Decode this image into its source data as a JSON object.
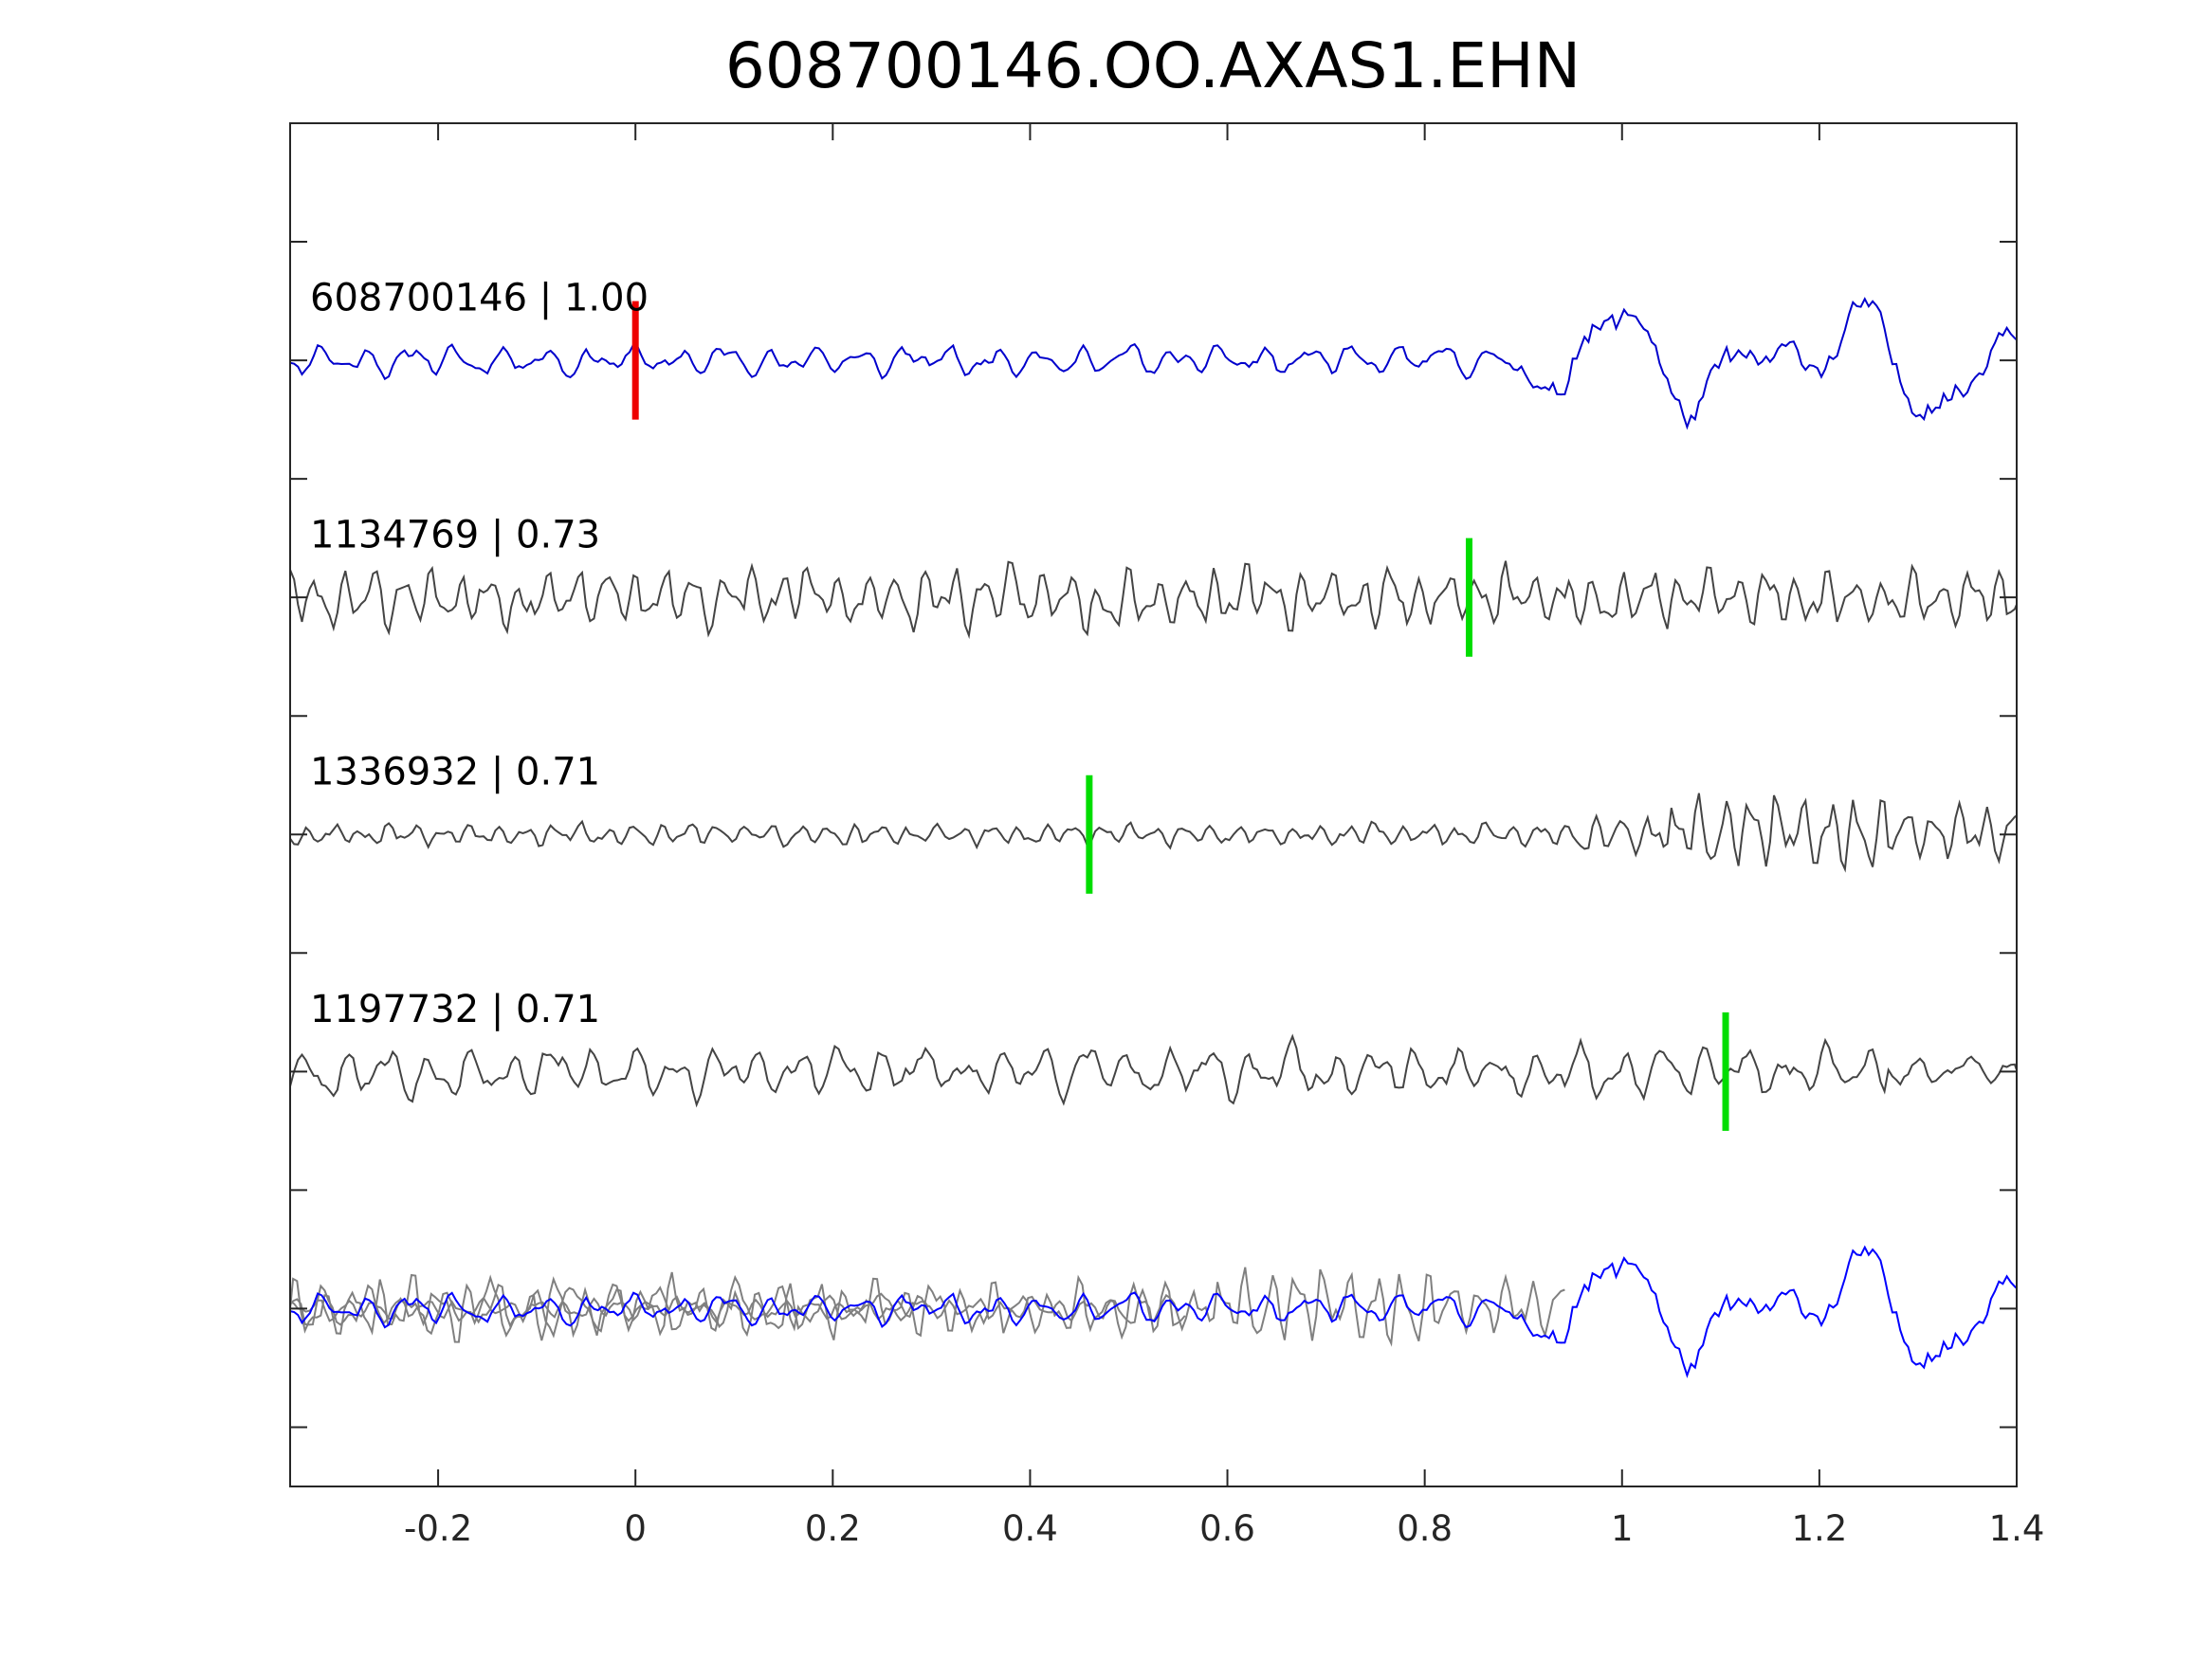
{
  "chart_data": {
    "type": "line",
    "title": "608700146.OO.AXAS1.EHN",
    "xlabel": "",
    "ylabel": "",
    "xlim": [
      -0.35,
      1.4
    ],
    "ylim": [
      0,
      5.75
    ],
    "xticks": [
      -0.2,
      0,
      0.2,
      0.4,
      0.6,
      0.8,
      1,
      1.2,
      1.4
    ],
    "xtick_labels": [
      "-0.2",
      "0",
      "0.2",
      "0.4",
      "0.6",
      "0.8",
      "1",
      "1.2",
      "1.4"
    ],
    "yticks": [
      0.25,
      0.75,
      1.25,
      1.75,
      2.25,
      2.75,
      3.25,
      3.75,
      4.25,
      4.75,
      5.25
    ],
    "grid": false,
    "sample_rate_hz": 250,
    "traces": [
      {
        "id": "608700146",
        "label": "608700146 | 1.00",
        "correlation": 1.0,
        "offset": 4.75,
        "color": "#0000cc",
        "pick_time": 0.0,
        "pick_color": "#ee0000",
        "seed": 11,
        "waveform": "Noisy low-amplitude signal before ~0.9 s, with large long-period swings after ~0.95 s (peaks near 1.03 and 1.19, troughs near 1.10 and 1.15)."
      },
      {
        "id": "1134769",
        "label": "1134769 | 0.73",
        "correlation": 0.73,
        "offset": 3.75,
        "color": "#444444",
        "pick_time": 0.845,
        "pick_color": "#00dd00",
        "seed": 23,
        "waveform": "High-frequency oscillation of fairly constant amplitude across the window."
      },
      {
        "id": "1336932",
        "label": "1336932 | 0.71",
        "correlation": 0.71,
        "offset": 2.75,
        "color": "#444444",
        "pick_time": 0.46,
        "pick_color": "#00dd00",
        "seed": 37,
        "waveform": "Low-amplitude noise that grows into a strong high-frequency arrival from ~0.95 s, largest between 1.1 and 1.25 s."
      },
      {
        "id": "1197732",
        "label": "1197732 | 0.71",
        "correlation": 0.71,
        "offset": 1.75,
        "color": "#444444",
        "pick_time": 1.105,
        "pick_color": "#00dd00",
        "seed": 53,
        "waveform": "Mid-frequency oscillation of moderate amplitude, quieter after ~1.27 s."
      }
    ],
    "overlay": {
      "offset": 0.75,
      "description": "All traces superposed, aligned on their picks; reference trace in blue, others in grey.",
      "reference_color": "#0000ff",
      "other_color": "#808080"
    }
  }
}
